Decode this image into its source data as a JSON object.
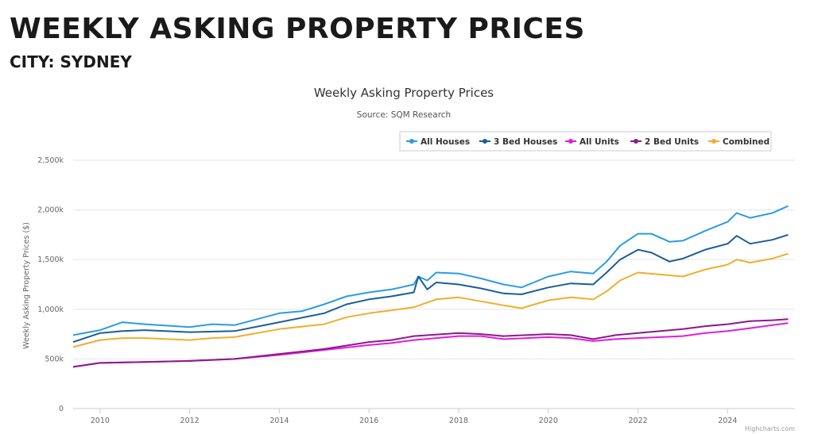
{
  "page": {
    "title": "WEEKLY ASKING PROPERTY PRICES",
    "subtitle": "CITY: SYDNEY"
  },
  "credit": "Highcharts.com",
  "chart_data": {
    "type": "line",
    "title": "Weekly Asking Property Prices",
    "subtitle": "Source: SQM Research",
    "xlabel": "",
    "ylabel": "Weekly Asking Property Prices ($)",
    "xlim": [
      2009.4,
      2025.5
    ],
    "ylim": [
      0,
      2500000
    ],
    "xticks": [
      2010,
      2012,
      2014,
      2016,
      2018,
      2020,
      2022,
      2024
    ],
    "yticks": [
      {
        "v": 0,
        "label": "0"
      },
      {
        "v": 500000,
        "label": "500k"
      },
      {
        "v": 1000000,
        "label": "1,000k"
      },
      {
        "v": 1500000,
        "label": "1,500k"
      },
      {
        "v": 2000000,
        "label": "2,000k"
      },
      {
        "v": 2500000,
        "label": "2,500k"
      }
    ],
    "grid": true,
    "legend_position": "top-right",
    "series": [
      {
        "name": "All Houses",
        "color": "#2b9be6",
        "points": [
          [
            2009.4,
            740
          ],
          [
            2010,
            790
          ],
          [
            2010.5,
            870
          ],
          [
            2011,
            850
          ],
          [
            2012,
            820
          ],
          [
            2012.5,
            850
          ],
          [
            2013,
            840
          ],
          [
            2014,
            960
          ],
          [
            2014.5,
            980
          ],
          [
            2015,
            1050
          ],
          [
            2015.5,
            1130
          ],
          [
            2016,
            1170
          ],
          [
            2016.5,
            1200
          ],
          [
            2017,
            1250
          ],
          [
            2017.1,
            1330
          ],
          [
            2017.3,
            1290
          ],
          [
            2017.5,
            1370
          ],
          [
            2018,
            1360
          ],
          [
            2018.5,
            1310
          ],
          [
            2019,
            1250
          ],
          [
            2019.4,
            1220
          ],
          [
            2020,
            1330
          ],
          [
            2020.5,
            1380
          ],
          [
            2021,
            1360
          ],
          [
            2021.3,
            1480
          ],
          [
            2021.6,
            1640
          ],
          [
            2022,
            1760
          ],
          [
            2022.3,
            1760
          ],
          [
            2022.7,
            1680
          ],
          [
            2023,
            1690
          ],
          [
            2023.5,
            1790
          ],
          [
            2024,
            1880
          ],
          [
            2024.2,
            1970
          ],
          [
            2024.5,
            1920
          ],
          [
            2025,
            1970
          ],
          [
            2025.35,
            2040
          ]
        ]
      },
      {
        "name": "3 Bed Houses",
        "color": "#1a5e96",
        "points": [
          [
            2009.4,
            670
          ],
          [
            2010,
            760
          ],
          [
            2010.5,
            780
          ],
          [
            2011,
            790
          ],
          [
            2012,
            770
          ],
          [
            2013,
            780
          ],
          [
            2014,
            870
          ],
          [
            2015,
            960
          ],
          [
            2015.5,
            1050
          ],
          [
            2016,
            1100
          ],
          [
            2016.5,
            1130
          ],
          [
            2017,
            1170
          ],
          [
            2017.1,
            1330
          ],
          [
            2017.3,
            1200
          ],
          [
            2017.5,
            1270
          ],
          [
            2018,
            1250
          ],
          [
            2018.5,
            1210
          ],
          [
            2019,
            1160
          ],
          [
            2019.4,
            1150
          ],
          [
            2020,
            1220
          ],
          [
            2020.5,
            1260
          ],
          [
            2021,
            1250
          ],
          [
            2021.3,
            1370
          ],
          [
            2021.6,
            1500
          ],
          [
            2022,
            1600
          ],
          [
            2022.3,
            1570
          ],
          [
            2022.7,
            1480
          ],
          [
            2023,
            1510
          ],
          [
            2023.5,
            1600
          ],
          [
            2024,
            1660
          ],
          [
            2024.2,
            1740
          ],
          [
            2024.5,
            1660
          ],
          [
            2025,
            1700
          ],
          [
            2025.35,
            1750
          ]
        ]
      },
      {
        "name": "All Units",
        "color": "#e21be2",
        "points": [
          [
            2009.4,
            420
          ],
          [
            2010,
            460
          ],
          [
            2011,
            470
          ],
          [
            2012,
            480
          ],
          [
            2013,
            500
          ],
          [
            2014,
            540
          ],
          [
            2015,
            590
          ],
          [
            2016,
            640
          ],
          [
            2016.5,
            660
          ],
          [
            2017,
            690
          ],
          [
            2018,
            730
          ],
          [
            2018.5,
            730
          ],
          [
            2019,
            700
          ],
          [
            2020,
            720
          ],
          [
            2020.5,
            710
          ],
          [
            2021,
            680
          ],
          [
            2021.5,
            700
          ],
          [
            2022,
            710
          ],
          [
            2022.5,
            720
          ],
          [
            2023,
            730
          ],
          [
            2023.5,
            760
          ],
          [
            2024,
            780
          ],
          [
            2024.5,
            810
          ],
          [
            2025,
            840
          ],
          [
            2025.35,
            860
          ]
        ]
      },
      {
        "name": "2 Bed Units",
        "color": "#8b1a8b",
        "points": [
          [
            2009.4,
            420
          ],
          [
            2010,
            460
          ],
          [
            2011,
            470
          ],
          [
            2012,
            480
          ],
          [
            2013,
            500
          ],
          [
            2014,
            550
          ],
          [
            2015,
            600
          ],
          [
            2016,
            670
          ],
          [
            2016.5,
            690
          ],
          [
            2017,
            730
          ],
          [
            2018,
            760
          ],
          [
            2018.5,
            750
          ],
          [
            2019,
            730
          ],
          [
            2020,
            750
          ],
          [
            2020.5,
            740
          ],
          [
            2021,
            700
          ],
          [
            2021.5,
            740
          ],
          [
            2022,
            760
          ],
          [
            2022.5,
            780
          ],
          [
            2023,
            800
          ],
          [
            2023.5,
            830
          ],
          [
            2024,
            850
          ],
          [
            2024.5,
            880
          ],
          [
            2025,
            890
          ],
          [
            2025.35,
            900
          ]
        ]
      },
      {
        "name": "Combined",
        "color": "#f0ae2e",
        "points": [
          [
            2009.4,
            620
          ],
          [
            2010,
            690
          ],
          [
            2010.5,
            710
          ],
          [
            2011,
            710
          ],
          [
            2012,
            690
          ],
          [
            2012.5,
            710
          ],
          [
            2013,
            720
          ],
          [
            2014,
            800
          ],
          [
            2015,
            850
          ],
          [
            2015.5,
            920
          ],
          [
            2016,
            960
          ],
          [
            2016.5,
            990
          ],
          [
            2017,
            1020
          ],
          [
            2017.5,
            1100
          ],
          [
            2018,
            1120
          ],
          [
            2018.5,
            1080
          ],
          [
            2019,
            1040
          ],
          [
            2019.4,
            1010
          ],
          [
            2020,
            1090
          ],
          [
            2020.5,
            1120
          ],
          [
            2021,
            1100
          ],
          [
            2021.3,
            1180
          ],
          [
            2021.6,
            1290
          ],
          [
            2022,
            1370
          ],
          [
            2022.5,
            1350
          ],
          [
            2023,
            1330
          ],
          [
            2023.5,
            1400
          ],
          [
            2024,
            1450
          ],
          [
            2024.2,
            1500
          ],
          [
            2024.5,
            1470
          ],
          [
            2025,
            1510
          ],
          [
            2025.35,
            1560
          ]
        ]
      }
    ],
    "point_units": "thousands of $"
  }
}
